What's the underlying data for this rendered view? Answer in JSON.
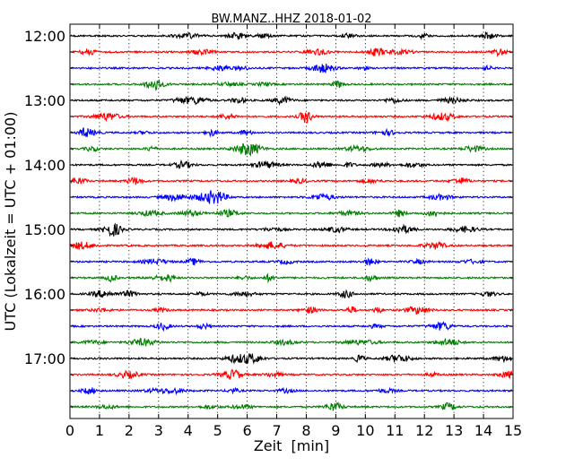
{
  "chart_data": {
    "type": "line",
    "title": "BW.MANZ..HHZ 2018-01-02",
    "xlabel": "Zeit  [min]",
    "ylabel": "UTC (Lokalzeit = UTC + 01:00)",
    "xlim": [
      0,
      15
    ],
    "x_ticks": [
      "0",
      "1",
      "2",
      "3",
      "4",
      "5",
      "6",
      "7",
      "8",
      "9",
      "10",
      "11",
      "12",
      "13",
      "14",
      "15"
    ],
    "y_tick_labels": [
      "12:00",
      "13:00",
      "14:00",
      "15:00",
      "16:00",
      "17:00"
    ],
    "grid": "vertical dotted",
    "trace_colors": [
      "#000000",
      "#ff0000",
      "#0000ff",
      "#007f00"
    ],
    "rows": [
      "12:00",
      "12:15",
      "12:30",
      "12:45",
      "13:00",
      "13:15",
      "13:30",
      "13:45",
      "14:00",
      "14:15",
      "14:30",
      "14:45",
      "15:00",
      "15:15",
      "15:30",
      "15:45",
      "16:00",
      "16:15",
      "16:30",
      "16:45",
      "17:00",
      "17:15",
      "17:30",
      "17:45"
    ]
  }
}
